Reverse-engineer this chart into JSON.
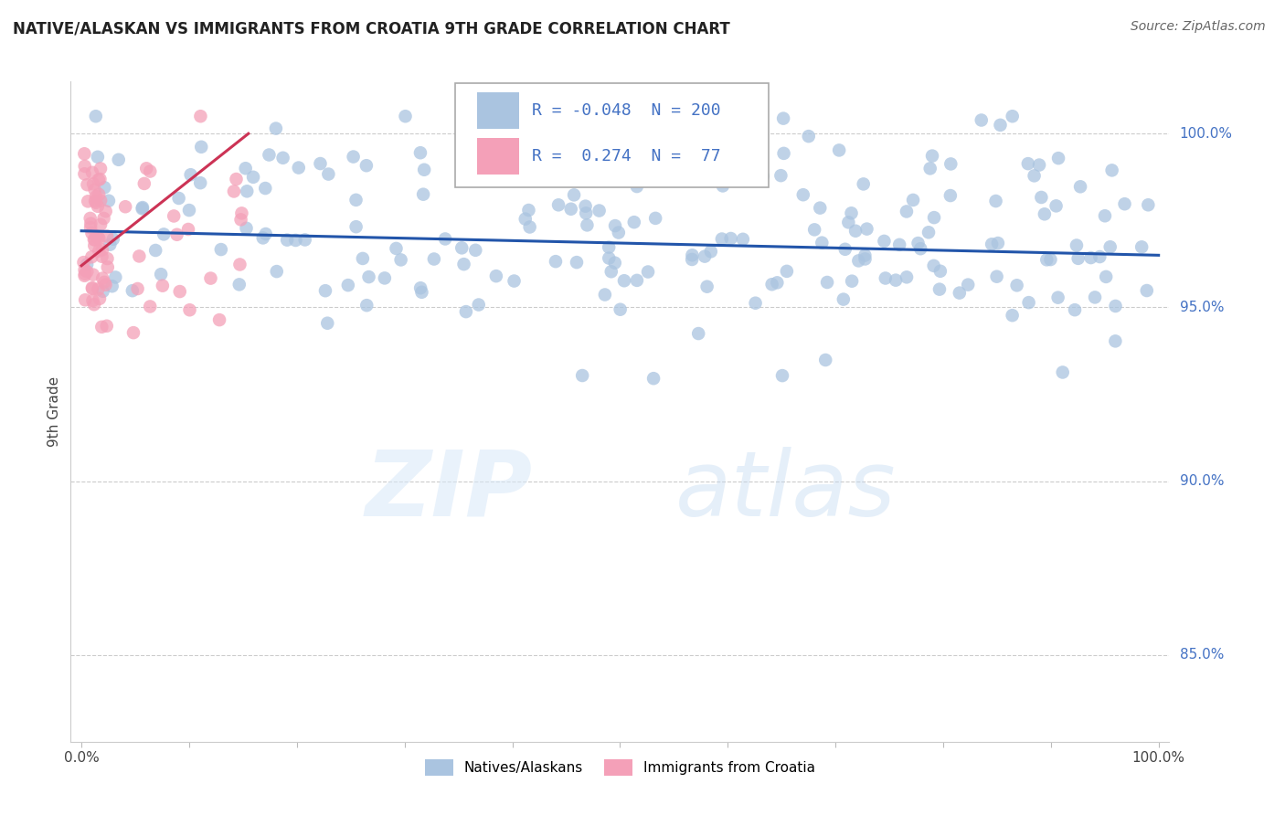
{
  "title": "NATIVE/ALASKAN VS IMMIGRANTS FROM CROATIA 9TH GRADE CORRELATION CHART",
  "source": "Source: ZipAtlas.com",
  "ylabel": "9th Grade",
  "xlim": [
    -0.01,
    1.01
  ],
  "ylim": [
    0.825,
    1.015
  ],
  "ytick_labels": [
    "85.0%",
    "90.0%",
    "95.0%",
    "100.0%"
  ],
  "ytick_values": [
    0.85,
    0.9,
    0.95,
    1.0
  ],
  "legend_blue_R": "-0.048",
  "legend_blue_N": "200",
  "legend_pink_R": "0.274",
  "legend_pink_N": "77",
  "blue_color": "#aac4e0",
  "pink_color": "#f4a0b8",
  "blue_line_color": "#2255aa",
  "pink_line_color": "#cc3355",
  "legend_text_color": "#4472c4",
  "right_label_color": "#4472c4",
  "title_color": "#222222",
  "source_color": "#666666",
  "grid_color": "#cccccc",
  "watermark_color1": "#d8e8f8",
  "watermark_color2": "#c0d8f0"
}
